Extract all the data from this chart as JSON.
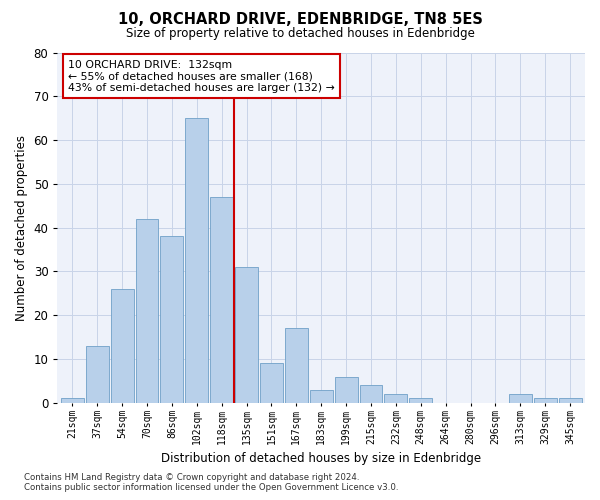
{
  "title": "10, ORCHARD DRIVE, EDENBRIDGE, TN8 5ES",
  "subtitle": "Size of property relative to detached houses in Edenbridge",
  "xlabel": "Distribution of detached houses by size in Edenbridge",
  "ylabel": "Number of detached properties",
  "bar_labels": [
    "21sqm",
    "37sqm",
    "54sqm",
    "70sqm",
    "86sqm",
    "102sqm",
    "118sqm",
    "135sqm",
    "151sqm",
    "167sqm",
    "183sqm",
    "199sqm",
    "215sqm",
    "232sqm",
    "248sqm",
    "264sqm",
    "280sqm",
    "296sqm",
    "313sqm",
    "329sqm",
    "345sqm"
  ],
  "bar_values": [
    1,
    13,
    26,
    42,
    38,
    65,
    47,
    31,
    9,
    17,
    3,
    6,
    4,
    2,
    1,
    0,
    0,
    0,
    2,
    1,
    1
  ],
  "bar_color": "#b8d0ea",
  "bar_edgecolor": "#6fa0c8",
  "vline_index": 7,
  "vline_color": "#cc0000",
  "annotation_text": "10 ORCHARD DRIVE:  132sqm\n← 55% of detached houses are smaller (168)\n43% of semi-detached houses are larger (132) →",
  "annotation_box_color": "#ffffff",
  "annotation_box_edgecolor": "#cc0000",
  "ylim": [
    0,
    80
  ],
  "yticks": [
    0,
    10,
    20,
    30,
    40,
    50,
    60,
    70,
    80
  ],
  "grid_color": "#c8d4e8",
  "background_color": "#eef2fa",
  "footer_line1": "Contains HM Land Registry data © Crown copyright and database right 2024.",
  "footer_line2": "Contains public sector information licensed under the Open Government Licence v3.0."
}
